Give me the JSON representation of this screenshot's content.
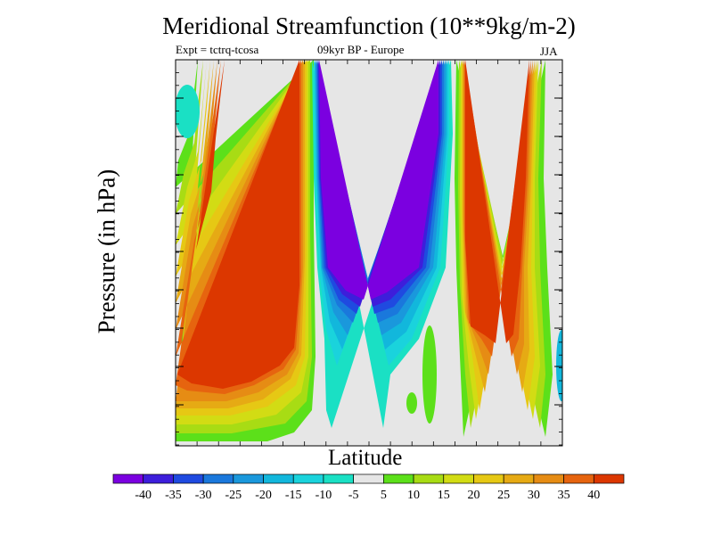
{
  "title": "Meridional Streamfunction (10**9kg/m-2)",
  "subtitle_left": "Expt = tctrq-tcosa",
  "subtitle_center": "09kyr BP - Europe",
  "subtitle_right": "JJA",
  "chart_data": {
    "type": "heatmap",
    "title": "Meridional Streamfunction (10**9kg/m-2)",
    "xlabel": "Latitude",
    "ylabel": "Pressure (in hPa)",
    "x_tick_labels": [],
    "y_tick_labels": [],
    "levels": [
      -45,
      -40,
      -35,
      -30,
      -25,
      -20,
      -15,
      -10,
      -5,
      5,
      10,
      15,
      20,
      25,
      30,
      35,
      40,
      45
    ],
    "colorbar_labels": [
      "-40",
      "-35",
      "-30",
      "-25",
      "-20",
      "-15",
      "-10",
      "-5",
      "5",
      "10",
      "15",
      "20",
      "25",
      "30",
      "35",
      "40"
    ],
    "colors": [
      "#7b00e0",
      "#3d1edb",
      "#1f4ae0",
      "#1a78dc",
      "#1a98dc",
      "#12b7dc",
      "#1ad3dc",
      "#1ae0c4",
      "#e6e6e6",
      "#5ce01a",
      "#a8dc14",
      "#d2dc14",
      "#e6c814",
      "#e6aa14",
      "#e68c14",
      "#e6640f",
      "#dc3700"
    ],
    "features": [
      {
        "name": "western positive cell",
        "sign": "positive",
        "max": ">40"
      },
      {
        "name": "central negative cell",
        "sign": "negative",
        "min": "<-40"
      },
      {
        "name": "eastern positive cell",
        "sign": "positive",
        "max": ">40"
      }
    ]
  }
}
